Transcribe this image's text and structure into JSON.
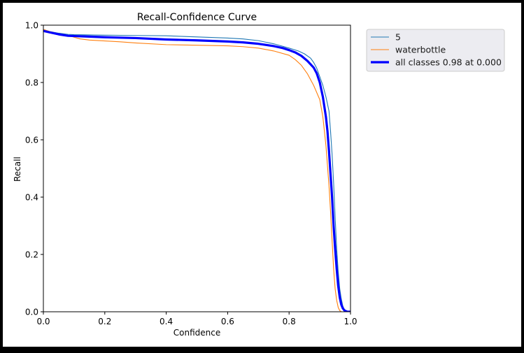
{
  "chart_data": {
    "type": "line",
    "title": "Recall-Confidence Curve",
    "xlabel": "Confidence",
    "ylabel": "Recall",
    "xlim": [
      0.0,
      1.0
    ],
    "ylim": [
      0.0,
      1.0
    ],
    "xticks": [
      "0.0",
      "0.2",
      "0.4",
      "0.6",
      "0.8",
      "1.0"
    ],
    "yticks": [
      "0.0",
      "0.2",
      "0.4",
      "0.6",
      "0.8",
      "1.0"
    ],
    "grid": false,
    "legend_position": "outside-top-right",
    "series": [
      {
        "name": "5",
        "color": "#1f77b4",
        "width": "thin",
        "x": [
          0.0,
          0.02,
          0.05,
          0.08,
          0.1,
          0.15,
          0.2,
          0.3,
          0.4,
          0.5,
          0.6,
          0.65,
          0.7,
          0.75,
          0.8,
          0.83,
          0.85,
          0.87,
          0.88,
          0.89,
          0.9,
          0.91,
          0.92,
          0.93,
          0.935,
          0.94,
          0.945,
          0.95,
          0.955,
          0.96,
          0.965,
          0.97,
          0.975,
          0.98,
          0.985,
          0.99,
          1.0
        ],
        "y": [
          0.985,
          0.978,
          0.972,
          0.968,
          0.967,
          0.966,
          0.965,
          0.964,
          0.963,
          0.959,
          0.955,
          0.952,
          0.946,
          0.935,
          0.92,
          0.91,
          0.9,
          0.885,
          0.87,
          0.85,
          0.82,
          0.79,
          0.75,
          0.7,
          0.63,
          0.55,
          0.45,
          0.33,
          0.22,
          0.14,
          0.08,
          0.045,
          0.02,
          0.008,
          0.002,
          0.0,
          0.0
        ]
      },
      {
        "name": "waterbottle",
        "color": "#ff7f0e",
        "width": "thin",
        "x": [
          0.0,
          0.02,
          0.05,
          0.08,
          0.1,
          0.12,
          0.15,
          0.2,
          0.25,
          0.3,
          0.4,
          0.5,
          0.6,
          0.65,
          0.7,
          0.75,
          0.8,
          0.82,
          0.84,
          0.86,
          0.88,
          0.9,
          0.91,
          0.92,
          0.93,
          0.935,
          0.94,
          0.945,
          0.95,
          0.955,
          0.96,
          0.965,
          0.97,
          1.0
        ],
        "y": [
          0.985,
          0.978,
          0.97,
          0.965,
          0.958,
          0.952,
          0.948,
          0.945,
          0.942,
          0.938,
          0.932,
          0.93,
          0.928,
          0.925,
          0.92,
          0.91,
          0.895,
          0.88,
          0.86,
          0.83,
          0.79,
          0.74,
          0.68,
          0.58,
          0.44,
          0.35,
          0.25,
          0.15,
          0.08,
          0.04,
          0.015,
          0.004,
          0.0,
          0.0
        ]
      },
      {
        "name": "all classes 0.98 at 0.000",
        "color": "#0000ff",
        "width": "thick",
        "x": [
          0.0,
          0.02,
          0.05,
          0.08,
          0.1,
          0.15,
          0.2,
          0.3,
          0.4,
          0.5,
          0.6,
          0.65,
          0.7,
          0.75,
          0.78,
          0.8,
          0.82,
          0.84,
          0.86,
          0.88,
          0.89,
          0.9,
          0.91,
          0.92,
          0.925,
          0.93,
          0.935,
          0.94,
          0.945,
          0.95,
          0.955,
          0.96,
          0.965,
          0.97,
          0.975,
          0.98,
          0.985,
          0.99,
          1.0
        ],
        "y": [
          0.98,
          0.975,
          0.968,
          0.963,
          0.962,
          0.96,
          0.958,
          0.955,
          0.95,
          0.947,
          0.943,
          0.94,
          0.935,
          0.927,
          0.92,
          0.913,
          0.905,
          0.893,
          0.875,
          0.852,
          0.832,
          0.8,
          0.75,
          0.68,
          0.63,
          0.56,
          0.48,
          0.4,
          0.3,
          0.22,
          0.15,
          0.09,
          0.05,
          0.025,
          0.012,
          0.005,
          0.002,
          0.0,
          0.0
        ]
      }
    ]
  }
}
